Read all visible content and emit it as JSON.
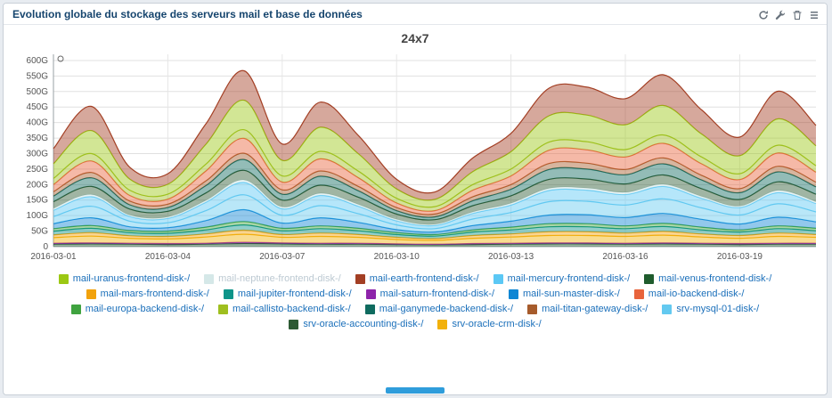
{
  "widget": {
    "title": "Evolution globale du stockage des serveurs mail et base de données",
    "toolbar_icons": [
      "refresh-icon",
      "wrench-icon",
      "trash-icon",
      "menu-icon"
    ]
  },
  "chart_data": {
    "type": "area",
    "stacked": true,
    "title": "24x7",
    "ylim": [
      0,
      620
    ],
    "grid": true,
    "legend_position": "bottom",
    "y_ticks": [
      {
        "value": 0,
        "label": "0"
      },
      {
        "value": 50,
        "label": "50G"
      },
      {
        "value": 100,
        "label": "100G"
      },
      {
        "value": 150,
        "label": "150G"
      },
      {
        "value": 200,
        "label": "200G"
      },
      {
        "value": 250,
        "label": "250G"
      },
      {
        "value": 300,
        "label": "300G"
      },
      {
        "value": 350,
        "label": "350G"
      },
      {
        "value": 400,
        "label": "400G"
      },
      {
        "value": 450,
        "label": "450G"
      },
      {
        "value": 500,
        "label": "500G"
      },
      {
        "value": 550,
        "label": "550G"
      },
      {
        "value": 600,
        "label": "600G"
      }
    ],
    "x_ticks": [
      {
        "index": 0,
        "label": "2016-03-01"
      },
      {
        "index": 3,
        "label": "2016-03-04"
      },
      {
        "index": 6,
        "label": "2016-03-07"
      },
      {
        "index": 9,
        "label": "2016-03-10"
      },
      {
        "index": 12,
        "label": "2016-03-13"
      },
      {
        "index": 15,
        "label": "2016-03-16"
      },
      {
        "index": 18,
        "label": "2016-03-19"
      }
    ],
    "series": [
      {
        "name": "mail-venus-frontend-disk-/",
        "color": "#1F5C2D",
        "values": [
          8,
          9,
          8,
          7,
          8,
          10,
          9,
          8,
          8,
          7,
          6,
          7,
          8,
          9,
          9,
          8,
          9,
          8,
          7,
          8,
          8
        ]
      },
      {
        "name": "mail-saturn-frontend-disk-/",
        "color": "#8E24AA",
        "values": [
          3,
          3,
          3,
          3,
          3,
          4,
          3,
          3,
          3,
          2,
          2,
          3,
          3,
          3,
          3,
          3,
          3,
          3,
          3,
          3,
          3
        ]
      },
      {
        "name": "srv-oracle-crm-disk-/",
        "color": "#F2B10C",
        "values": [
          18,
          22,
          16,
          15,
          20,
          26,
          18,
          22,
          19,
          14,
          12,
          17,
          20,
          24,
          24,
          22,
          25,
          20,
          17,
          22,
          19
        ]
      },
      {
        "name": "mail-mars-frontend-disk-/",
        "color": "#F2A20C",
        "values": [
          9,
          11,
          8,
          8,
          10,
          13,
          9,
          11,
          9,
          7,
          6,
          9,
          10,
          12,
          12,
          11,
          12,
          10,
          9,
          11,
          9
        ]
      },
      {
        "name": "mail-jupiter-frontend-disk-/",
        "color": "#0D9489",
        "values": [
          12,
          14,
          10,
          10,
          13,
          17,
          12,
          14,
          12,
          9,
          8,
          11,
          13,
          16,
          16,
          14,
          16,
          13,
          11,
          14,
          12
        ]
      },
      {
        "name": "mail-europa-backend-disk-/",
        "color": "#3FA33F",
        "values": [
          8,
          9,
          7,
          7,
          9,
          11,
          8,
          9,
          8,
          6,
          5,
          7,
          9,
          10,
          10,
          9,
          10,
          9,
          7,
          9,
          8
        ]
      },
      {
        "name": "mail-sun-master-disk-/",
        "color": "#0E86D4",
        "values": [
          16,
          25,
          12,
          11,
          21,
          38,
          17,
          26,
          19,
          10,
          8,
          14,
          19,
          28,
          29,
          27,
          32,
          25,
          19,
          28,
          21
        ]
      },
      {
        "name": "srv-mysql-01-disk-/",
        "color": "#63C9F0",
        "values": [
          23,
          37,
          18,
          16,
          32,
          48,
          25,
          39,
          28,
          15,
          11,
          21,
          28,
          43,
          43,
          40,
          47,
          37,
          29,
          43,
          32
        ]
      },
      {
        "name": "mail-mercury-frontend-disk-/",
        "color": "#5BC8F5",
        "values": [
          20,
          31,
          15,
          14,
          27,
          40,
          21,
          33,
          24,
          13,
          10,
          18,
          24,
          36,
          36,
          34,
          40,
          31,
          24,
          36,
          27
        ]
      },
      {
        "name": "mail-neptune-frontend-disk-/",
        "color": "#D5E8E8",
        "values": [
          6,
          7,
          5,
          5,
          6,
          8,
          6,
          7,
          6,
          5,
          4,
          5,
          6,
          7,
          7,
          7,
          7,
          6,
          5,
          7,
          6
        ]
      },
      {
        "name": "srv-oracle-accounting-disk-/",
        "color": "#2D5A33",
        "values": [
          22,
          26,
          19,
          18,
          24,
          31,
          22,
          26,
          23,
          17,
          15,
          20,
          24,
          29,
          29,
          27,
          30,
          25,
          21,
          28,
          24
        ]
      },
      {
        "name": "mail-ganymede-backend-disk-/",
        "color": "#0F6B5F",
        "values": [
          18,
          28,
          14,
          12,
          24,
          35,
          19,
          29,
          21,
          11,
          9,
          16,
          21,
          32,
          32,
          30,
          36,
          28,
          22,
          32,
          24
        ]
      },
      {
        "name": "mail-titan-gateway-disk-/",
        "color": "#A65B2B",
        "values": [
          14,
          17,
          12,
          11,
          15,
          20,
          14,
          17,
          14,
          10,
          9,
          13,
          15,
          19,
          19,
          17,
          19,
          15,
          13,
          18,
          15
        ]
      },
      {
        "name": "mail-io-backend-disk-/",
        "color": "#E8643C",
        "values": [
          23,
          37,
          18,
          16,
          32,
          48,
          25,
          39,
          28,
          15,
          11,
          21,
          28,
          43,
          43,
          40,
          47,
          37,
          29,
          43,
          32
        ]
      },
      {
        "name": "mail-callisto-backend-disk-/",
        "color": "#9FBF1F",
        "values": [
          20,
          24,
          17,
          16,
          22,
          28,
          20,
          24,
          21,
          15,
          13,
          18,
          22,
          26,
          26,
          24,
          27,
          22,
          19,
          25,
          21
        ]
      },
      {
        "name": "mail-uranus-frontend-disk-/",
        "color": "#9CC813",
        "values": [
          47,
          74,
          36,
          32,
          64,
          95,
          50,
          78,
          56,
          30,
          23,
          42,
          56,
          85,
          86,
          80,
          95,
          74,
          58,
          85,
          64
        ]
      },
      {
        "name": "mail-earth-frontend-disk-/",
        "color": "#A33F24",
        "values": [
          49,
          78,
          38,
          34,
          66,
          95,
          53,
          81,
          59,
          31,
          24,
          44,
          59,
          89,
          90,
          84,
          99,
          78,
          60,
          89,
          66
        ]
      }
    ],
    "legend_order": [
      "mail-uranus-frontend-disk-/",
      "mail-neptune-frontend-disk-/",
      "mail-earth-frontend-disk-/",
      "mail-mercury-frontend-disk-/",
      "mail-venus-frontend-disk-/",
      "mail-mars-frontend-disk-/",
      "mail-jupiter-frontend-disk-/",
      "mail-saturn-frontend-disk-/",
      "mail-sun-master-disk-/",
      "mail-io-backend-disk-/",
      "mail-europa-backend-disk-/",
      "mail-callisto-backend-disk-/",
      "mail-ganymede-backend-disk-/",
      "mail-titan-gateway-disk-/",
      "srv-mysql-01-disk-/",
      "srv-oracle-accounting-disk-/",
      "srv-oracle-crm-disk-/"
    ],
    "muted_series": [
      "mail-neptune-frontend-disk-/"
    ]
  }
}
